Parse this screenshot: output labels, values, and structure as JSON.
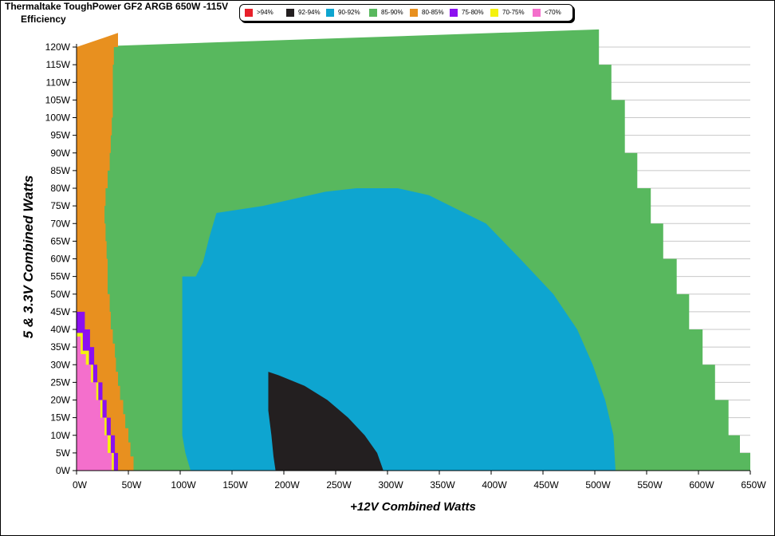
{
  "chart_data": {
    "type": "heatmap",
    "title": "Thermaltake ToughPower GF2 ARGB 650W -115V",
    "subtitle": "Efficiency",
    "xlabel": "+12V Combined Watts",
    "ylabel": "5 & 3.3V Combined Watts",
    "xlim": [
      0,
      650
    ],
    "ylim": [
      0,
      120
    ],
    "x_ticks": [
      "0W",
      "50W",
      "100W",
      "150W",
      "200W",
      "250W",
      "300W",
      "350W",
      "400W",
      "450W",
      "500W",
      "550W",
      "600W",
      "650W"
    ],
    "y_ticks": [
      "0W",
      "5W",
      "10W",
      "15W",
      "20W",
      "25W",
      "30W",
      "35W",
      "40W",
      "45W",
      "50W",
      "55W",
      "60W",
      "65W",
      "70W",
      "75W",
      "80W",
      "85W",
      "90W",
      "95W",
      "100W",
      "105W",
      "110W",
      "115W",
      "120W"
    ],
    "legend_position": "top-center",
    "legend": [
      {
        "label": ">94%",
        "color": "#e8202a"
      },
      {
        "label": "92-94%",
        "color": "#231f20"
      },
      {
        "label": "90-92%",
        "color": "#0ea5d0"
      },
      {
        "label": "85-90%",
        "color": "#58b85e"
      },
      {
        "label": "80-85%",
        "color": "#e8901f"
      },
      {
        "label": "75-80%",
        "color": "#8b10f0"
      },
      {
        "label": "70-75%",
        "color": "#f5f20e"
      },
      {
        "label": "<70%",
        "color": "#f46fcc"
      }
    ],
    "regions": [
      {
        "band": "85-90%",
        "max_x_by_y": [
          [
            0,
            650
          ],
          [
            5,
            640
          ],
          [
            10,
            629
          ],
          [
            15,
            629
          ],
          [
            20,
            616
          ],
          [
            25,
            616
          ],
          [
            30,
            604
          ],
          [
            35,
            604
          ],
          [
            40,
            591
          ],
          [
            45,
            591
          ],
          [
            50,
            579
          ],
          [
            55,
            579
          ],
          [
            60,
            566
          ],
          [
            65,
            566
          ],
          [
            70,
            554
          ],
          [
            75,
            554
          ],
          [
            80,
            541
          ],
          [
            85,
            541
          ],
          [
            90,
            529
          ],
          [
            95,
            529
          ],
          [
            100,
            529
          ],
          [
            105,
            516
          ],
          [
            110,
            516
          ],
          [
            115,
            504
          ],
          [
            120,
            504
          ]
        ]
      },
      {
        "band": "80-85%",
        "max_x_by_y": [
          [
            0,
            55
          ],
          [
            4,
            52
          ],
          [
            8,
            50
          ],
          [
            12,
            47
          ],
          [
            16,
            45
          ],
          [
            20,
            42
          ],
          [
            24,
            40
          ],
          [
            28,
            38
          ],
          [
            32,
            37
          ],
          [
            36,
            35
          ],
          [
            40,
            33
          ],
          [
            45,
            32
          ],
          [
            50,
            30
          ],
          [
            55,
            30
          ],
          [
            60,
            29
          ],
          [
            65,
            28
          ],
          [
            70,
            27
          ],
          [
            75,
            28
          ],
          [
            80,
            30
          ],
          [
            85,
            32
          ],
          [
            90,
            33
          ],
          [
            95,
            34
          ],
          [
            100,
            35
          ],
          [
            105,
            35
          ],
          [
            110,
            35
          ],
          [
            115,
            36
          ],
          [
            120,
            40
          ]
        ]
      },
      {
        "band": "75-80%",
        "max_x_by_y": [
          [
            0,
            40
          ],
          [
            5,
            37
          ],
          [
            10,
            33
          ],
          [
            15,
            29
          ],
          [
            20,
            25
          ],
          [
            25,
            20
          ],
          [
            30,
            17
          ],
          [
            35,
            13
          ],
          [
            40,
            8
          ]
        ]
      },
      {
        "band": "70-75%",
        "max_x_by_y": [
          [
            0,
            36
          ],
          [
            5,
            33
          ],
          [
            10,
            29
          ],
          [
            15,
            25
          ],
          [
            20,
            21
          ],
          [
            25,
            16
          ],
          [
            30,
            12
          ],
          [
            34,
            6
          ]
        ]
      },
      {
        "band": "<70%",
        "max_x_by_y": [
          [
            0,
            34
          ],
          [
            5,
            30
          ],
          [
            10,
            27
          ],
          [
            15,
            23
          ],
          [
            20,
            19
          ],
          [
            25,
            14
          ],
          [
            30,
            9
          ],
          [
            33,
            4
          ]
        ]
      },
      {
        "band": "90-92%",
        "y_range": [
          0,
          80
        ],
        "outline": [
          [
            110,
            0
          ],
          [
            520,
            0
          ],
          [
            518,
            10
          ],
          [
            510,
            20
          ],
          [
            498,
            30
          ],
          [
            483,
            40
          ],
          [
            460,
            50
          ],
          [
            428,
            60
          ],
          [
            395,
            70
          ],
          [
            340,
            78
          ],
          [
            310,
            80
          ],
          [
            270,
            80
          ],
          [
            240,
            79
          ],
          [
            180,
            75
          ],
          [
            135,
            73
          ],
          [
            128,
            66
          ],
          [
            122,
            59
          ],
          [
            115,
            55
          ],
          [
            102,
            55
          ],
          [
            102,
            10
          ],
          [
            105,
            5
          ],
          [
            108,
            2
          ]
        ]
      },
      {
        "band": "92-94%",
        "y_range": [
          0,
          28
        ],
        "outline": [
          [
            192,
            0
          ],
          [
            296,
            0
          ],
          [
            290,
            5
          ],
          [
            278,
            10
          ],
          [
            262,
            15
          ],
          [
            242,
            20
          ],
          [
            220,
            24
          ],
          [
            195,
            27
          ],
          [
            185,
            28
          ],
          [
            185,
            17
          ],
          [
            188,
            10
          ],
          [
            190,
            4
          ]
        ]
      }
    ]
  }
}
